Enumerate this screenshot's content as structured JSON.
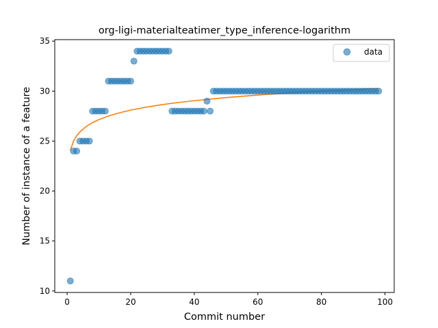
{
  "chart_data": {
    "type": "scatter",
    "title": "org-ligi-materialteatimer_type_inference-logarithm",
    "xlabel": "Commit number",
    "ylabel": "Number of instance of a feature",
    "xlim": [
      -3.9,
      102.9
    ],
    "ylim": [
      9.85,
      35.15
    ],
    "xticks": [
      0,
      20,
      40,
      60,
      80,
      100
    ],
    "yticks": [
      10,
      15,
      20,
      25,
      30,
      35
    ],
    "legend": {
      "position": "top-right",
      "entries": [
        "data"
      ]
    },
    "grid": false,
    "colors": {
      "points": "#1f77b4",
      "fit": "#ff7f0e"
    },
    "series": [
      {
        "name": "data",
        "kind": "scatter",
        "x": [
          1,
          2,
          3,
          4,
          5,
          6,
          7,
          8,
          9,
          10,
          11,
          12,
          13,
          14,
          15,
          16,
          17,
          18,
          19,
          20,
          21,
          22,
          23,
          24,
          25,
          26,
          27,
          28,
          29,
          30,
          31,
          32,
          33,
          34,
          35,
          36,
          37,
          38,
          39,
          40,
          41,
          42,
          43,
          44,
          45,
          46,
          47,
          48,
          49,
          50,
          51,
          52,
          53,
          54,
          55,
          56,
          57,
          58,
          59,
          60,
          61,
          62,
          63,
          64,
          65,
          66,
          67,
          68,
          69,
          70,
          71,
          72,
          73,
          74,
          75,
          76,
          77,
          78,
          79,
          80,
          81,
          82,
          83,
          84,
          85,
          86,
          87,
          88,
          89,
          90,
          91,
          92,
          93,
          94,
          95,
          96,
          97,
          98
        ],
        "y": [
          11,
          24,
          24,
          25,
          25,
          25,
          25,
          28,
          28,
          28,
          28,
          28,
          31,
          31,
          31,
          31,
          31,
          31,
          31,
          31,
          33,
          34,
          34,
          34,
          34,
          34,
          34,
          34,
          34,
          34,
          34,
          34,
          28,
          28,
          28,
          28,
          28,
          28,
          28,
          28,
          28,
          28,
          28,
          29,
          28,
          30,
          30,
          30,
          30,
          30,
          30,
          30,
          30,
          30,
          30,
          30,
          30,
          30,
          30,
          30,
          30,
          30,
          30,
          30,
          30,
          30,
          30,
          30,
          30,
          30,
          30,
          30,
          30,
          30,
          30,
          30,
          30,
          30,
          30,
          30,
          30,
          30,
          30,
          30,
          30,
          30,
          30,
          30,
          30,
          30,
          30,
          30,
          30,
          30,
          30,
          30,
          30,
          30
        ]
      },
      {
        "kind": "line",
        "x": [
          1,
          2,
          3,
          4,
          6,
          8,
          10,
          13,
          16,
          20,
          25,
          30,
          35,
          40,
          45,
          50,
          55,
          60,
          65,
          70,
          75,
          80,
          85,
          90,
          95,
          98
        ],
        "y": [
          24.05,
          24.99,
          25.53,
          25.92,
          26.46,
          26.85,
          27.15,
          27.51,
          27.79,
          28.1,
          28.4,
          28.65,
          28.86,
          29.04,
          29.2,
          29.35,
          29.48,
          29.6,
          29.71,
          29.81,
          29.9,
          29.99,
          30.07,
          30.14,
          30.22,
          30.26
        ]
      }
    ]
  }
}
